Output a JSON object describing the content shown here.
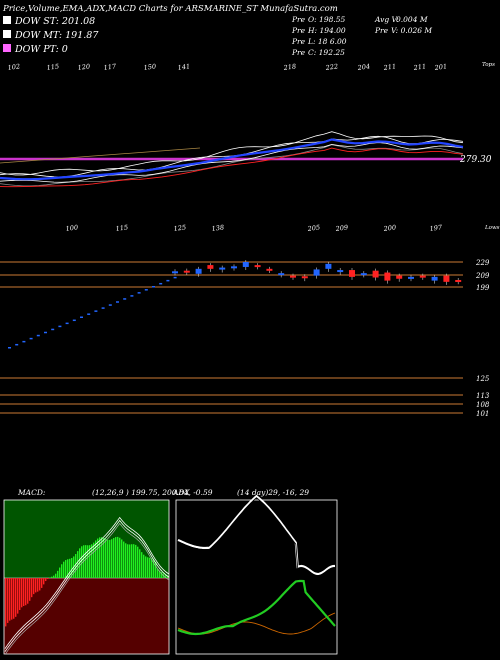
{
  "header": {
    "title": "Price,Volume,EMA,ADX,MACD Charts for ARSMARINE_ST MunafaSutra.com"
  },
  "legend": [
    {
      "label": "DOW ST: 201.08",
      "color": "#ffffff"
    },
    {
      "label": "DOW MT: 191.87",
      "color": "#ffffff"
    },
    {
      "label": "DOW PT: 0",
      "color": "#ff66ff"
    }
  ],
  "stats": [
    {
      "label": "Pre",
      "text": "O: 198.55"
    },
    {
      "label": "Avg V:",
      "text": "0.004  M"
    },
    {
      "label": "Pre",
      "text": "H: 194.00"
    },
    {
      "label": "Pre",
      "text": "V: 0.026  M"
    },
    {
      "label": "Pre",
      "text": "L: 18        6.00"
    },
    {
      "label": "Pre",
      "text": "C: 192.25"
    }
  ],
  "panels": {
    "ema": {
      "top_label": "Tops",
      "top_values": [
        "102",
        "115",
        "120",
        "117",
        "150",
        "141",
        "218",
        "222",
        "204",
        "211",
        "211",
        "201"
      ],
      "price_marker": "279.30",
      "colors": {
        "bg": "#000000",
        "pt_line": "#cc33cc",
        "blue": "#2244ff",
        "red": "#ff2222"
      }
    },
    "price": {
      "bottom_label": "Lows",
      "low_values": [
        "100",
        "115",
        "125",
        "138",
        "205",
        "209",
        "200",
        "197"
      ],
      "levels": [
        {
          "value": 229,
          "label": "229"
        },
        {
          "value": 209,
          "label": "209"
        },
        {
          "value": 199,
          "label": "199"
        },
        {
          "value": 125,
          "label": "125"
        },
        {
          "value": 113,
          "label": "113"
        },
        {
          "value": 108,
          "label": "108"
        },
        {
          "value": 101,
          "label": "101"
        }
      ],
      "colors": {
        "level": "#cc7a33",
        "up": "#2266ff",
        "down": "#ff2222"
      }
    },
    "macd": {
      "label": "MACD:",
      "values_text": "(12,26,9 ) 199.75,  200.84, -0.59",
      "colors": {
        "positive": "#22ee22",
        "negative": "#ff2222",
        "bg_top": "#005500",
        "bg_bottom": "#550000"
      }
    },
    "adx": {
      "label": "ADX",
      "values_text": "(14  day)29,  -16,  29",
      "colors": {
        "adx": "#ffffff",
        "plus_di": "#22cc22",
        "minus_di": "#cc6600"
      }
    }
  },
  "chart_data": [
    {
      "type": "line",
      "title": "Price,Volume,EMA,ADX,MACD Charts for ARSMARINE_ST MunafaSutra.com",
      "top_tick_labels": [
        "102",
        "115",
        "120",
        "117",
        "150",
        "141",
        "218",
        "222",
        "204",
        "211",
        "211",
        "201"
      ],
      "series": [
        {
          "name": "DOW ST",
          "last": 201.08
        },
        {
          "name": "DOW MT",
          "last": 191.87
        },
        {
          "name": "DOW PT",
          "last": 0
        }
      ],
      "annotation": "279.30"
    },
    {
      "type": "scatter",
      "bottom_tick_labels": [
        "100",
        "115",
        "125",
        "138",
        "205",
        "209",
        "200",
        "197"
      ],
      "right_axis_levels": [
        229,
        209,
        199,
        125,
        113,
        108,
        101
      ],
      "candles": [
        {
          "o": 214,
          "c": 212,
          "dir": "up"
        },
        {
          "o": 215,
          "c": 213,
          "dir": "down"
        },
        {
          "o": 210,
          "c": 218,
          "dir": "up"
        },
        {
          "o": 218,
          "c": 224,
          "dir": "down"
        },
        {
          "o": 217,
          "c": 220,
          "dir": "up"
        },
        {
          "o": 220,
          "c": 222,
          "dir": "up"
        },
        {
          "o": 221,
          "c": 229,
          "dir": "up"
        },
        {
          "o": 224,
          "c": 222,
          "dir": "down"
        },
        {
          "o": 216,
          "c": 218,
          "dir": "down"
        },
        {
          "o": 211,
          "c": 209,
          "dir": "up"
        },
        {
          "o": 207,
          "c": 205,
          "dir": "down"
        },
        {
          "o": 206,
          "c": 203,
          "dir": "down"
        },
        {
          "o": 207,
          "c": 217,
          "dir": "up"
        },
        {
          "o": 226,
          "c": 218,
          "dir": "up"
        },
        {
          "o": 213,
          "c": 216,
          "dir": "up"
        },
        {
          "o": 216,
          "c": 205,
          "dir": "down"
        },
        {
          "o": 209,
          "c": 211,
          "dir": "up"
        },
        {
          "o": 215,
          "c": 204,
          "dir": "down"
        },
        {
          "o": 212,
          "c": 199,
          "dir": "down"
        },
        {
          "o": 207,
          "c": 202,
          "dir": "down"
        },
        {
          "o": 205,
          "c": 203,
          "dir": "up"
        },
        {
          "o": 207,
          "c": 205,
          "dir": "down"
        },
        {
          "o": 205,
          "c": 199,
          "dir": "up"
        },
        {
          "o": 207,
          "c": 197,
          "dir": "down"
        },
        {
          "o": 200,
          "c": 198,
          "dir": "down"
        }
      ]
    },
    {
      "type": "bar",
      "title": "MACD",
      "macd": 199.75,
      "signal": 200.84,
      "histogram": -0.59
    },
    {
      "type": "line",
      "title": "ADX",
      "period": 14,
      "adx": 29,
      "plus_di": -16,
      "minus_di": 29
    }
  ]
}
